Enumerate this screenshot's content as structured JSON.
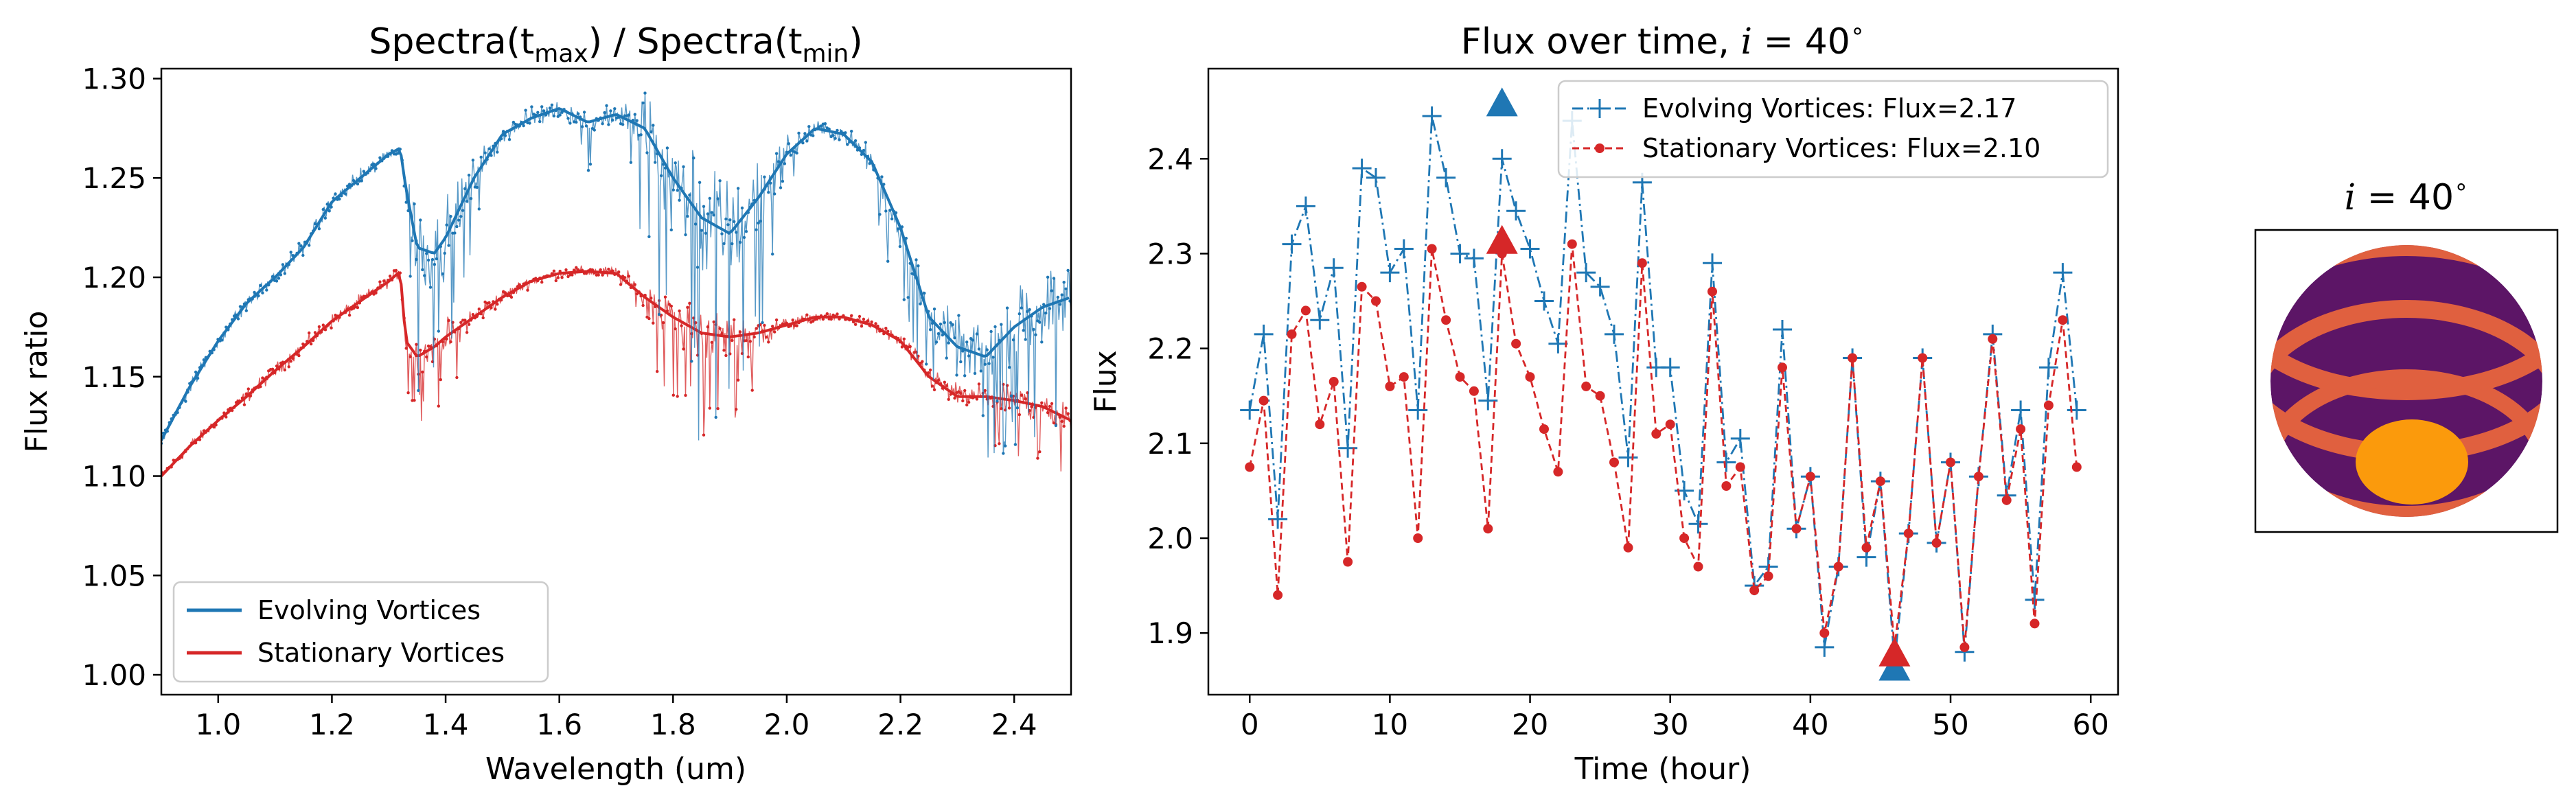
{
  "chart_data": [
    {
      "type": "line",
      "title": "Spectra(t_max) / Spectra(t_min)",
      "title_parts": {
        "pre": "Spectra(t",
        "sub1": "max",
        "mid": ") / Spectra(t",
        "sub2": "min",
        "post": ")"
      },
      "xlabel": "Wavelength (um)",
      "ylabel": "Flux ratio",
      "xlim": [
        0.9,
        2.5
      ],
      "ylim": [
        0.99,
        1.305
      ],
      "xticks": [
        1.0,
        1.2,
        1.4,
        1.6,
        1.8,
        2.0,
        2.2,
        2.4
      ],
      "xtick_labels": [
        "1.0",
        "1.2",
        "1.4",
        "1.6",
        "1.8",
        "2.0",
        "2.2",
        "2.4"
      ],
      "yticks": [
        1.0,
        1.05,
        1.1,
        1.15,
        1.2,
        1.25,
        1.3
      ],
      "ytick_labels": [
        "1.00",
        "1.05",
        "1.10",
        "1.15",
        "1.20",
        "1.25",
        "1.30"
      ],
      "legend_position": "lower-left",
      "series": [
        {
          "name": "Evolving Vortices",
          "color": "#1f77b4",
          "x": [
            0.9,
            0.95,
            1.0,
            1.05,
            1.1,
            1.15,
            1.2,
            1.25,
            1.3,
            1.32,
            1.33,
            1.35,
            1.38,
            1.4,
            1.45,
            1.5,
            1.55,
            1.6,
            1.65,
            1.7,
            1.75,
            1.8,
            1.85,
            1.9,
            1.95,
            2.0,
            2.05,
            2.1,
            2.15,
            2.2,
            2.25,
            2.3,
            2.35,
            2.4,
            2.45,
            2.5
          ],
          "y": [
            1.118,
            1.145,
            1.168,
            1.187,
            1.2,
            1.215,
            1.238,
            1.25,
            1.262,
            1.265,
            1.245,
            1.215,
            1.212,
            1.22,
            1.25,
            1.272,
            1.28,
            1.285,
            1.278,
            1.282,
            1.275,
            1.25,
            1.23,
            1.222,
            1.24,
            1.262,
            1.275,
            1.272,
            1.258,
            1.225,
            1.18,
            1.165,
            1.16,
            1.175,
            1.185,
            1.19
          ],
          "spread": [
            0.004,
            0.005,
            0.005,
            0.006,
            0.006,
            0.006,
            0.006,
            0.006,
            0.005,
            0.004,
            0.02,
            0.03,
            0.03,
            0.025,
            0.015,
            0.006,
            0.008,
            0.006,
            0.012,
            0.006,
            0.025,
            0.04,
            0.045,
            0.04,
            0.03,
            0.012,
            0.006,
            0.006,
            0.01,
            0.015,
            0.018,
            0.02,
            0.02,
            0.025,
            0.025,
            0.025
          ]
        },
        {
          "name": "Stationary Vortices",
          "color": "#d62728",
          "x": [
            0.9,
            0.95,
            1.0,
            1.05,
            1.1,
            1.15,
            1.2,
            1.25,
            1.3,
            1.32,
            1.33,
            1.35,
            1.38,
            1.4,
            1.45,
            1.5,
            1.55,
            1.6,
            1.65,
            1.7,
            1.75,
            1.8,
            1.85,
            1.9,
            1.95,
            2.0,
            2.05,
            2.1,
            2.15,
            2.2,
            2.25,
            2.3,
            2.35,
            2.4,
            2.45,
            2.5
          ],
          "y": [
            1.1,
            1.115,
            1.128,
            1.14,
            1.153,
            1.165,
            1.178,
            1.188,
            1.198,
            1.203,
            1.168,
            1.16,
            1.165,
            1.17,
            1.18,
            1.19,
            1.198,
            1.202,
            1.203,
            1.202,
            1.19,
            1.18,
            1.172,
            1.17,
            1.172,
            1.176,
            1.18,
            1.18,
            1.176,
            1.168,
            1.15,
            1.14,
            1.14,
            1.138,
            1.135,
            1.128
          ],
          "spread": [
            0.003,
            0.004,
            0.004,
            0.005,
            0.005,
            0.005,
            0.005,
            0.005,
            0.004,
            0.004,
            0.012,
            0.015,
            0.015,
            0.012,
            0.008,
            0.005,
            0.004,
            0.004,
            0.004,
            0.005,
            0.012,
            0.018,
            0.02,
            0.018,
            0.012,
            0.005,
            0.003,
            0.003,
            0.004,
            0.006,
            0.008,
            0.01,
            0.01,
            0.012,
            0.012,
            0.012
          ]
        }
      ]
    },
    {
      "type": "line",
      "title": "Flux over time, i = 40°",
      "title_parts": {
        "pre": "Flux over time, ",
        "var": "i",
        "post": " = 40",
        "deg": "∘"
      },
      "xlabel": "Time (hour)",
      "ylabel": "Flux",
      "xlim": [
        -2.95,
        61.95
      ],
      "ylim": [
        1.835,
        2.495
      ],
      "xticks": [
        0,
        10,
        20,
        30,
        40,
        50,
        60
      ],
      "xtick_labels": [
        "0",
        "10",
        "20",
        "30",
        "40",
        "50",
        "60"
      ],
      "yticks": [
        1.9,
        2.0,
        2.1,
        2.2,
        2.3,
        2.4
      ],
      "ytick_labels": [
        "1.9",
        "2.0",
        "2.1",
        "2.2",
        "2.3",
        "2.4"
      ],
      "legend_position": "top-right",
      "series": [
        {
          "name": "Evolving Vortices: Flux=2.17",
          "color": "#1f77b4",
          "style": "dashdot-plus",
          "x": [
            0,
            1,
            2,
            3,
            4,
            5,
            6,
            7,
            8,
            9,
            10,
            11,
            12,
            13,
            14,
            15,
            16,
            17,
            18,
            19,
            20,
            21,
            22,
            23,
            24,
            25,
            26,
            27,
            28,
            29,
            30,
            31,
            32,
            33,
            34,
            35,
            36,
            37,
            38,
            39,
            40,
            41,
            42,
            43,
            44,
            45,
            46,
            47,
            48,
            49,
            50,
            51,
            52,
            53,
            54,
            55,
            56,
            57,
            58,
            59
          ],
          "y": [
            2.135,
            2.215,
            2.02,
            2.31,
            2.35,
            2.23,
            2.285,
            2.095,
            2.39,
            2.38,
            2.28,
            2.305,
            2.135,
            2.445,
            2.38,
            2.3,
            2.295,
            2.145,
            2.4,
            2.345,
            2.305,
            2.25,
            2.205,
            2.44,
            2.28,
            2.265,
            2.215,
            2.085,
            2.375,
            2.18,
            2.18,
            2.05,
            2.015,
            2.29,
            2.08,
            2.105,
            1.95,
            1.97,
            2.22,
            2.01,
            2.065,
            1.885,
            1.97,
            2.19,
            1.98,
            2.06,
            1.87,
            2.005,
            2.19,
            1.995,
            2.08,
            1.88,
            2.065,
            2.215,
            2.045,
            2.135,
            1.935,
            2.18,
            2.28,
            2.135
          ]
        },
        {
          "name": "Stationary Vortices: Flux=2.10",
          "color": "#d62728",
          "style": "dashed-dot",
          "x": [
            0,
            1,
            2,
            3,
            4,
            5,
            6,
            7,
            8,
            9,
            10,
            11,
            12,
            13,
            14,
            15,
            16,
            17,
            18,
            19,
            20,
            21,
            22,
            23,
            24,
            25,
            26,
            27,
            28,
            29,
            30,
            31,
            32,
            33,
            34,
            35,
            36,
            37,
            38,
            39,
            40,
            41,
            42,
            43,
            44,
            45,
            46,
            47,
            48,
            49,
            50,
            51,
            52,
            53,
            54,
            55,
            56,
            57,
            58,
            59
          ],
          "y": [
            2.075,
            2.145,
            1.94,
            2.215,
            2.24,
            2.12,
            2.165,
            1.975,
            2.265,
            2.25,
            2.16,
            2.17,
            2.0,
            2.305,
            2.23,
            2.17,
            2.155,
            2.01,
            2.3,
            2.205,
            2.17,
            2.115,
            2.07,
            2.31,
            2.16,
            2.15,
            2.08,
            1.99,
            2.29,
            2.11,
            2.12,
            2.0,
            1.97,
            2.26,
            2.055,
            2.075,
            1.945,
            1.96,
            2.18,
            2.01,
            2.065,
            1.9,
            1.97,
            2.19,
            1.99,
            2.06,
            1.885,
            2.005,
            2.19,
            1.995,
            2.08,
            1.885,
            2.065,
            2.21,
            2.04,
            2.115,
            1.91,
            2.14,
            2.23,
            2.075
          ]
        }
      ],
      "markers": [
        {
          "series": "Evolving Vortices: Flux=2.17",
          "type": "max",
          "x": 18,
          "y": 2.46,
          "color": "#1f77b4"
        },
        {
          "series": "Stationary Vortices: Flux=2.10",
          "type": "max",
          "x": 18,
          "y": 2.315,
          "color": "#d62728"
        },
        {
          "series": "Evolving Vortices: Flux=2.17",
          "type": "min",
          "x": 46,
          "y": 1.865,
          "color": "#1f77b4"
        },
        {
          "series": "Stationary Vortices: Flux=2.10",
          "type": "min",
          "x": 46,
          "y": 1.88,
          "color": "#d62728"
        }
      ]
    }
  ],
  "planet": {
    "title": "i = 40°",
    "title_parts": {
      "var": "i",
      "post": " = 40",
      "deg": "∘"
    },
    "colors": {
      "body": "#5c1566",
      "band": "#e0603f",
      "spot": "#fb9a0c"
    },
    "inclination_deg": 40
  }
}
